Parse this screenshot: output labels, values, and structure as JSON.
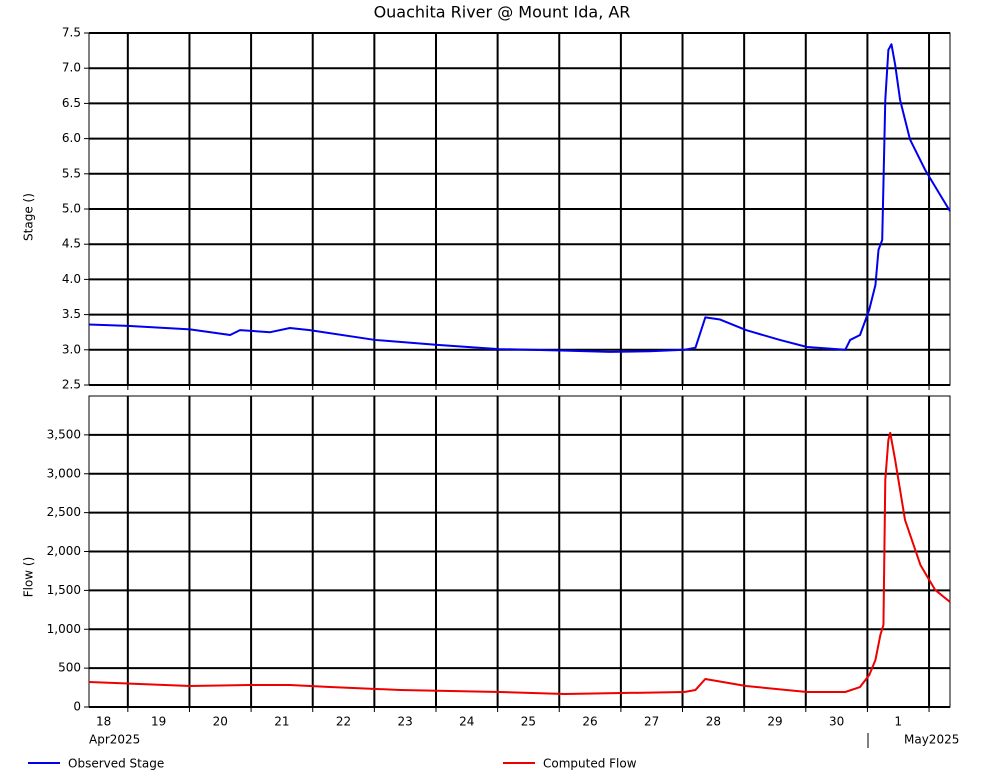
{
  "chart_data": [
    {
      "type": "line",
      "title": "Ouachita River @ Mount Ida, AR",
      "ylabel": "Stage ()",
      "legend": "bottom",
      "grid": true,
      "xlim": [
        0.37,
        14.34
      ],
      "xticks": [
        1,
        2,
        3,
        4,
        5,
        6,
        7,
        8,
        9,
        10,
        11,
        12,
        13,
        14
      ],
      "ylim": [
        2.5,
        7.5
      ],
      "yticks": [
        2.5,
        {
          "value": 3,
          "label": "3.0"
        },
        3.5,
        {
          "value": 4,
          "label": "4.0"
        },
        4.5,
        {
          "value": 5,
          "label": "5.0"
        },
        5.5,
        {
          "value": 6,
          "label": "6.0"
        },
        6.5,
        {
          "value": 7,
          "label": "7.0"
        },
        7.5
      ],
      "x": [
        0.37,
        1.0,
        2.01,
        2.66,
        2.82,
        3.31,
        3.63,
        3.95,
        5.01,
        6.02,
        7.02,
        8.03,
        8.82,
        9.47,
        10.03,
        10.21,
        10.37,
        10.61,
        11.03,
        11.58,
        12.02,
        12.64,
        12.72,
        12.88,
        13.03,
        13.13,
        13.18,
        13.24,
        13.29,
        13.34,
        13.39,
        13.45,
        13.53,
        13.69,
        13.94,
        14.18,
        14.34
      ],
      "series": [
        {
          "name": "Observed Stage",
          "color": "#0000ee",
          "values": [
            3.36,
            3.34,
            3.29,
            3.21,
            3.28,
            3.25,
            3.31,
            3.28,
            3.14,
            3.07,
            3.01,
            2.99,
            2.97,
            2.98,
            3.0,
            3.03,
            3.46,
            3.43,
            3.28,
            3.14,
            3.04,
            3.0,
            3.14,
            3.21,
            3.57,
            3.92,
            4.42,
            4.56,
            6.55,
            7.26,
            7.34,
            7.05,
            6.55,
            5.99,
            5.55,
            5.2,
            4.97
          ]
        }
      ]
    },
    {
      "type": "line",
      "ylabel": "Flow ()",
      "legend": "bottom",
      "grid": true,
      "xlim": [
        0.37,
        14.34
      ],
      "xticks": [
        {
          "value": 0,
          "label": "18"
        },
        {
          "value": 1,
          "label": "19"
        },
        {
          "value": 2,
          "label": "20"
        },
        {
          "value": 3,
          "label": "21"
        },
        {
          "value": 4,
          "label": "22"
        },
        {
          "value": 5,
          "label": "23"
        },
        {
          "value": 6,
          "label": "24"
        },
        {
          "value": 7,
          "label": "25"
        },
        {
          "value": 8,
          "label": "26"
        },
        {
          "value": 9,
          "label": "27"
        },
        {
          "value": 10,
          "label": "28"
        },
        {
          "value": 11,
          "label": "29"
        },
        {
          "value": 12,
          "label": "30"
        },
        {
          "value": 13,
          "label": "1"
        },
        {
          "value": 14,
          "label": null
        }
      ],
      "month_labels": [
        "Apr2025",
        "May2025"
      ],
      "ylim": [
        0,
        4000
      ],
      "yticks": [
        0,
        500,
        {
          "value": 1000,
          "label": "1,000"
        },
        {
          "value": 1500,
          "label": "1,500"
        },
        {
          "value": 2000,
          "label": "2,000"
        },
        {
          "value": 2500,
          "label": "2,500"
        },
        {
          "value": 3000,
          "label": "3,000"
        },
        {
          "value": 3500,
          "label": "3,500"
        }
      ],
      "x": [
        0.37,
        2.01,
        2.98,
        3.63,
        4.28,
        5.42,
        7.04,
        8.09,
        10.03,
        10.21,
        10.37,
        11.03,
        12.02,
        12.64,
        12.88,
        13.03,
        13.13,
        13.21,
        13.26,
        13.29,
        13.34,
        13.37,
        13.45,
        13.61,
        13.86,
        14.1,
        14.34
      ],
      "series": [
        {
          "name": "Computed Flow",
          "color": "#ee0000",
          "values": [
            322,
            270,
            283,
            283,
            257,
            219,
            193,
            167,
            193,
            219,
            360,
            270,
            193,
            193,
            257,
            412,
            605,
            926,
            1055,
            2921,
            3436,
            3526,
            3178,
            2406,
            1827,
            1505,
            1351
          ]
        }
      ]
    }
  ]
}
